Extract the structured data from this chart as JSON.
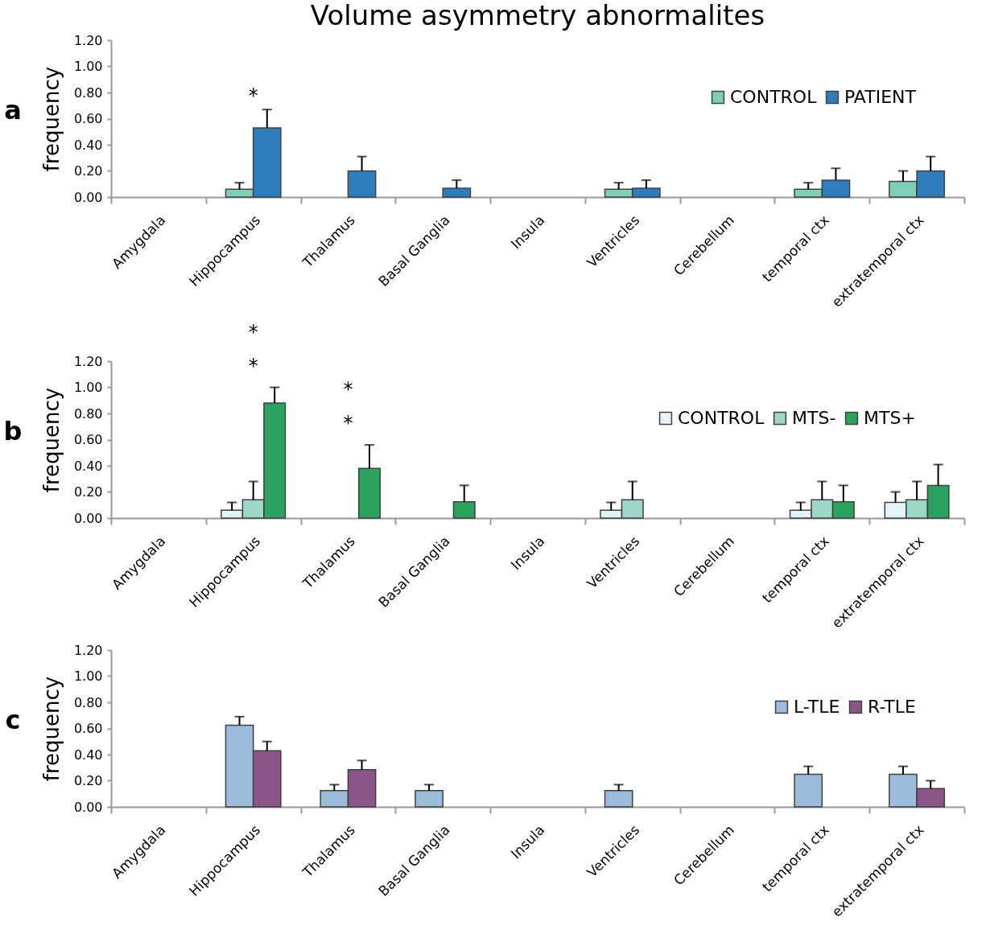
{
  "chart_data": [
    {
      "type": "bar",
      "title": "Volume asymmetry abnormalites",
      "ylabel": "frequency",
      "legend": "top right",
      "categories": [
        "Amygdala",
        "Hippocampus",
        "Thalamus",
        "Basal Ganglia",
        "Insula",
        "Ventricles",
        "Cerebellum",
        "temporal ctx",
        "extratemporal ctx"
      ],
      "ylim": [
        0,
        1.2
      ],
      "yticks": [
        {
          "value": 0,
          "label": "0.00"
        },
        {
          "value": 0.2,
          "label": "0.20"
        },
        {
          "value": 0.4,
          "label": "0.40"
        },
        {
          "value": 0.6,
          "label": "0.60"
        },
        {
          "value": 0.8,
          "label": "0.80"
        },
        {
          "value": 1,
          "label": "1.00"
        },
        {
          "value": 1.2,
          "label": "1.20"
        }
      ],
      "series": [
        {
          "name": "CONTROL",
          "color": "#7fcfb8",
          "values": [
            0,
            0.06,
            0,
            0,
            0,
            0.06,
            0,
            0.06,
            0.12
          ],
          "errors": [
            null,
            [
              0.06,
              0.11
            ],
            null,
            null,
            null,
            [
              0.06,
              0.11
            ],
            null,
            [
              0.06,
              0.11
            ],
            [
              0.12,
              0.2
            ]
          ]
        },
        {
          "name": "PATIENT",
          "color": "#2e7dbd",
          "values": [
            0,
            0.53,
            0.2,
            0.067,
            0,
            0.067,
            0,
            0.13,
            0.2
          ],
          "errors": [
            null,
            [
              0.53,
              0.67
            ],
            [
              0.2,
              0.31
            ],
            [
              0.067,
              0.13
            ],
            null,
            [
              0.067,
              0.13
            ],
            null,
            [
              0.13,
              0.22
            ],
            [
              0.2,
              0.31
            ]
          ]
        }
      ],
      "annotations": [
        "a",
        {
          "text": "*",
          "x": "Hippocampus",
          "y": 0.67
        }
      ]
    },
    {
      "type": "bar",
      "ylabel": "frequency",
      "legend": "top right",
      "categories": [
        "Amygdala",
        "Hippocampus",
        "Thalamus",
        "Basal Ganglia",
        "Insula",
        "Ventricles",
        "Cerebellum",
        "temporal ctx",
        "extratemporal ctx"
      ],
      "ylim": [
        0,
        1.2
      ],
      "yticks": [
        {
          "value": 0,
          "label": "0.00"
        },
        {
          "value": 0.2,
          "label": "0.20"
        },
        {
          "value": 0.4,
          "label": "0.40"
        },
        {
          "value": 0.6,
          "label": "0.60"
        },
        {
          "value": 0.8,
          "label": "0.80"
        },
        {
          "value": 1,
          "label": "1.00"
        },
        {
          "value": 1.2,
          "label": "1.20"
        }
      ],
      "series": [
        {
          "name": "CONTROL",
          "color": "#e4f3f8",
          "values": [
            0,
            0.06,
            0,
            0,
            0,
            0.06,
            0,
            0.06,
            0.12
          ],
          "errors": [
            null,
            [
              0.06,
              0.12
            ],
            null,
            null,
            null,
            [
              0.06,
              0.12
            ],
            null,
            [
              0.06,
              0.12
            ],
            [
              0.12,
              0.2
            ]
          ]
        },
        {
          "name": "MTS-",
          "color": "#9bd8c6",
          "values": [
            0,
            0.14,
            0,
            0,
            0,
            0.14,
            0,
            0.14,
            0.14
          ],
          "errors": [
            null,
            [
              0.14,
              0.28
            ],
            null,
            null,
            null,
            [
              0.14,
              0.28
            ],
            null,
            [
              0.14,
              0.28
            ],
            [
              0.14,
              0.28
            ]
          ]
        },
        {
          "name": "MTS+",
          "color": "#2ca25f",
          "values": [
            0,
            0.88,
            0.38,
            0.125,
            0,
            0,
            0,
            0.125,
            0.25
          ],
          "errors": [
            null,
            [
              0.88,
              1.0
            ],
            [
              0.38,
              0.56
            ],
            [
              0.125,
              0.25
            ],
            null,
            null,
            null,
            [
              0.125,
              0.25
            ],
            [
              0.25,
              0.41
            ]
          ]
        }
      ],
      "annotations": [
        "b",
        "*",
        "*",
        "*",
        "*"
      ]
    },
    {
      "type": "bar",
      "ylabel": "frequency",
      "legend": "top right",
      "categories": [
        "Amygdala",
        "Hippocampus",
        "Thalamus",
        "Basal Ganglia",
        "Insula",
        "Ventricles",
        "Cerebellum",
        "temporal ctx",
        "extratemporal ctx"
      ],
      "ylim": [
        0,
        1.2
      ],
      "yticks": [
        {
          "value": 0,
          "label": "0.00"
        },
        {
          "value": 0.2,
          "label": "0.20"
        },
        {
          "value": 0.4,
          "label": "0.40"
        },
        {
          "value": 0.6,
          "label": "0.60"
        },
        {
          "value": 0.8,
          "label": "0.80"
        },
        {
          "value": 1,
          "label": "1.00"
        },
        {
          "value": 1.2,
          "label": "1.20"
        }
      ],
      "series": [
        {
          "name": "L-TLE",
          "color": "#9dbbdb",
          "values": [
            0,
            0.625,
            0.125,
            0.125,
            0,
            0.125,
            0,
            0.25,
            0.25
          ],
          "errors": [
            null,
            [
              0.625,
              0.69
            ],
            [
              0.125,
              0.17
            ],
            [
              0.125,
              0.17
            ],
            null,
            [
              0.125,
              0.17
            ],
            null,
            [
              0.25,
              0.31
            ],
            [
              0.25,
              0.31
            ]
          ]
        },
        {
          "name": "R-TLE",
          "color": "#8b5589",
          "values": [
            0,
            0.43,
            0.285,
            0,
            0,
            0,
            0,
            0,
            0.14
          ],
          "errors": [
            null,
            [
              0.43,
              0.5
            ],
            [
              0.285,
              0.355
            ],
            null,
            null,
            null,
            null,
            null,
            [
              0.14,
              0.2
            ]
          ]
        }
      ],
      "annotations": [
        "c"
      ]
    }
  ]
}
